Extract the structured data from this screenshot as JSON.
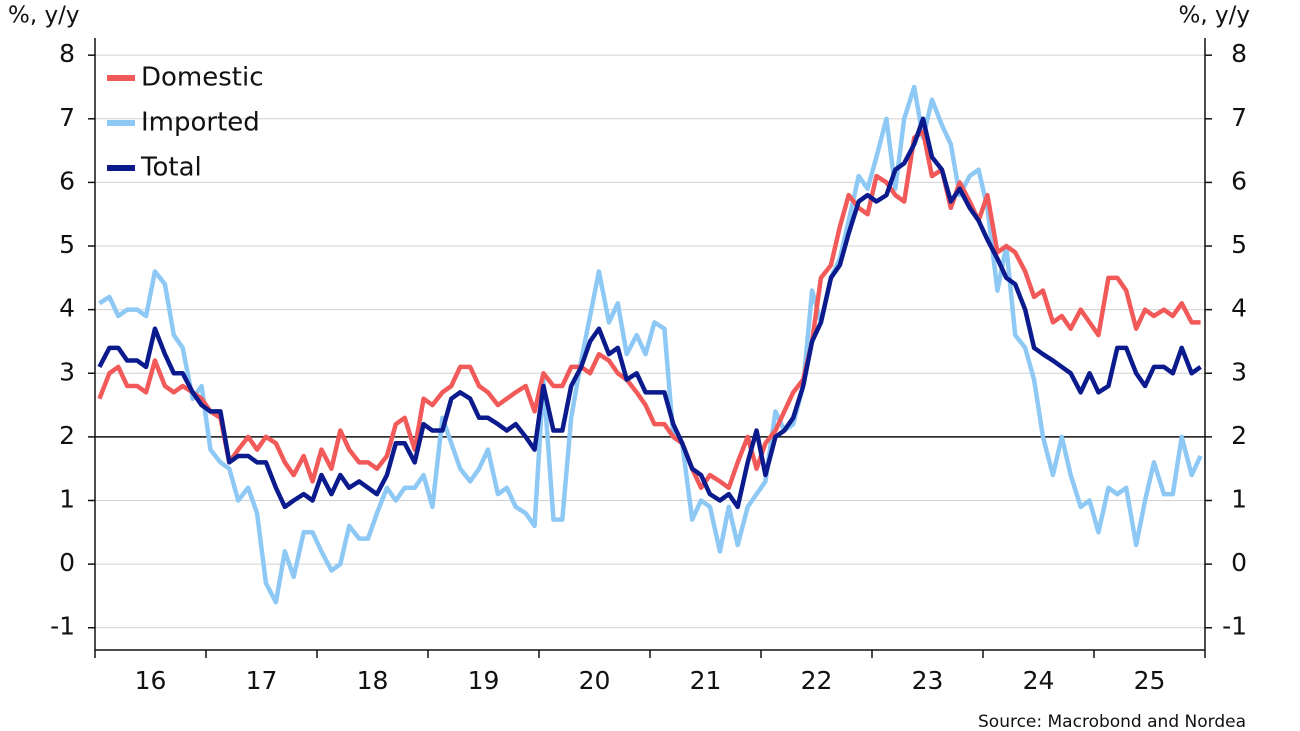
{
  "chart_data": {
    "type": "line",
    "y_unit_label": "%, y/y",
    "source": "Source: Macrobond and Nordea",
    "x": [
      16.04,
      16.13,
      16.21,
      16.29,
      16.38,
      16.46,
      16.54,
      16.63,
      16.71,
      16.79,
      16.88,
      16.96,
      17.04,
      17.13,
      17.21,
      17.29,
      17.38,
      17.46,
      17.54,
      17.63,
      17.71,
      17.79,
      17.88,
      17.96,
      18.04,
      18.13,
      18.21,
      18.29,
      18.38,
      18.46,
      18.54,
      18.63,
      18.71,
      18.79,
      18.88,
      18.96,
      19.04,
      19.13,
      19.21,
      19.29,
      19.38,
      19.46,
      19.54,
      19.63,
      19.71,
      19.79,
      19.88,
      19.96,
      20.04,
      20.13,
      20.21,
      20.29,
      20.38,
      20.46,
      20.54,
      20.63,
      20.71,
      20.79,
      20.88,
      20.96,
      21.04,
      21.13,
      21.21,
      21.29,
      21.38,
      21.46,
      21.54,
      21.63,
      21.71,
      21.79,
      21.88,
      21.96,
      22.04,
      22.13,
      22.21,
      22.29,
      22.38,
      22.46,
      22.54,
      22.63,
      22.71,
      22.79,
      22.88,
      22.96,
      23.04,
      23.13,
      23.21,
      23.29,
      23.38,
      23.46,
      23.54,
      23.63,
      23.71,
      23.79,
      23.88,
      23.96,
      24.04,
      24.13,
      24.21,
      24.29,
      24.38,
      24.46,
      24.54,
      24.63,
      24.71,
      24.79,
      24.88,
      24.96,
      25.04,
      25.13,
      25.21,
      25.29,
      25.38,
      25.46,
      25.54,
      25.63,
      25.71,
      25.79,
      25.88,
      25.96
    ],
    "series": [
      {
        "name": "Domestic",
        "color": "#f25a5a",
        "values": [
          2.6,
          3.0,
          3.1,
          2.8,
          2.8,
          2.7,
          3.2,
          2.8,
          2.7,
          2.8,
          2.7,
          2.6,
          2.4,
          2.3,
          1.6,
          1.8,
          2.0,
          1.8,
          2.0,
          1.9,
          1.6,
          1.4,
          1.7,
          1.3,
          1.8,
          1.5,
          2.1,
          1.8,
          1.6,
          1.6,
          1.5,
          1.7,
          2.2,
          2.3,
          1.8,
          2.6,
          2.5,
          2.7,
          2.8,
          3.1,
          3.1,
          2.8,
          2.7,
          2.5,
          2.6,
          2.7,
          2.8,
          2.4,
          3.0,
          2.8,
          2.8,
          3.1,
          3.1,
          3.0,
          3.3,
          3.2,
          3.0,
          2.9,
          2.7,
          2.5,
          2.2,
          2.2,
          2.0,
          1.9,
          1.5,
          1.2,
          1.4,
          1.3,
          1.2,
          1.6,
          2.0,
          1.5,
          1.9,
          2.1,
          2.4,
          2.7,
          2.9,
          3.5,
          4.5,
          4.7,
          5.3,
          5.8,
          5.6,
          5.5,
          6.1,
          6.0,
          5.8,
          5.7,
          6.7,
          6.8,
          6.1,
          6.2,
          5.6,
          6.0,
          5.7,
          5.4,
          5.8,
          4.9,
          5.0,
          4.9,
          4.6,
          4.2,
          4.3,
          3.8,
          3.9,
          3.7,
          4.0,
          3.8,
          3.6,
          4.5,
          4.5,
          4.3,
          3.7,
          4.0,
          3.9,
          4.0,
          3.9,
          4.1,
          3.8,
          3.8
        ]
      },
      {
        "name": "Imported",
        "color": "#8ec8f5",
        "values": [
          4.1,
          4.2,
          3.9,
          4.0,
          4.0,
          3.9,
          4.6,
          4.4,
          3.6,
          3.4,
          2.6,
          2.8,
          1.8,
          1.6,
          1.5,
          1.0,
          1.2,
          0.8,
          -0.3,
          -0.6,
          0.2,
          -0.2,
          0.5,
          0.5,
          0.2,
          -0.1,
          0.0,
          0.6,
          0.4,
          0.4,
          0.8,
          1.2,
          1.0,
          1.2,
          1.2,
          1.4,
          0.9,
          2.3,
          1.9,
          1.5,
          1.3,
          1.5,
          1.8,
          1.1,
          1.2,
          0.9,
          0.8,
          0.6,
          2.9,
          0.7,
          0.7,
          2.3,
          3.2,
          3.9,
          4.6,
          3.8,
          4.1,
          3.3,
          3.6,
          3.3,
          3.8,
          3.7,
          2.0,
          1.9,
          0.7,
          1.0,
          0.9,
          0.2,
          0.9,
          0.3,
          0.9,
          1.1,
          1.3,
          2.4,
          2.1,
          2.2,
          2.8,
          4.3,
          3.8,
          4.5,
          4.8,
          5.4,
          6.1,
          5.9,
          6.4,
          7.0,
          5.9,
          7.0,
          7.5,
          6.7,
          7.3,
          6.9,
          6.6,
          5.8,
          6.1,
          6.2,
          5.6,
          4.3,
          5.0,
          3.6,
          3.4,
          2.9,
          2.0,
          1.4,
          2.0,
          1.4,
          0.9,
          1.0,
          0.5,
          1.2,
          1.1,
          1.2,
          0.3,
          1.0,
          1.6,
          1.1,
          1.1,
          2.0,
          1.4,
          1.7
        ]
      },
      {
        "name": "Total",
        "color": "#0b1a8c",
        "values": [
          3.1,
          3.4,
          3.4,
          3.2,
          3.2,
          3.1,
          3.7,
          3.3,
          3.0,
          3.0,
          2.7,
          2.5,
          2.4,
          2.4,
          1.6,
          1.7,
          1.7,
          1.6,
          1.6,
          1.2,
          0.9,
          1.0,
          1.1,
          1.0,
          1.4,
          1.1,
          1.4,
          1.2,
          1.3,
          1.2,
          1.1,
          1.4,
          1.9,
          1.9,
          1.6,
          2.2,
          2.1,
          2.1,
          2.6,
          2.7,
          2.6,
          2.3,
          2.3,
          2.2,
          2.1,
          2.2,
          2.0,
          1.8,
          2.8,
          2.1,
          2.1,
          2.8,
          3.1,
          3.5,
          3.7,
          3.3,
          3.4,
          2.9,
          3.0,
          2.7,
          2.7,
          2.7,
          2.2,
          1.9,
          1.5,
          1.4,
          1.1,
          1.0,
          1.1,
          0.9,
          1.6,
          2.1,
          1.4,
          2.0,
          2.1,
          2.3,
          2.8,
          3.5,
          3.8,
          4.5,
          4.7,
          5.2,
          5.7,
          5.8,
          5.7,
          5.8,
          6.2,
          6.3,
          6.6,
          7.0,
          6.4,
          6.2,
          5.7,
          5.9,
          5.6,
          5.4,
          5.1,
          4.8,
          4.5,
          4.4,
          4.0,
          3.4,
          3.3,
          3.2,
          3.1,
          3.0,
          2.7,
          3.0,
          2.7,
          2.8,
          3.4,
          3.4,
          3.0,
          2.8,
          3.1,
          3.1,
          3.0,
          3.4,
          3.0,
          3.1
        ]
      }
    ],
    "xlim": [
      16,
      26
    ],
    "xticks": [
      16,
      17,
      18,
      19,
      20,
      21,
      22,
      23,
      24,
      25,
      26
    ],
    "xtick_labels": [
      {
        "value": 16.5,
        "label": "16"
      },
      {
        "value": 17.5,
        "label": "17"
      },
      {
        "value": 18.5,
        "label": "18"
      },
      {
        "value": 19.5,
        "label": "19"
      },
      {
        "value": 20.5,
        "label": "20"
      },
      {
        "value": 21.5,
        "label": "21"
      },
      {
        "value": 22.5,
        "label": "22"
      },
      {
        "value": 23.5,
        "label": "23"
      },
      {
        "value": 24.5,
        "label": "24"
      },
      {
        "value": 25.5,
        "label": "25"
      }
    ],
    "ylim": [
      -1.35,
      8.27
    ],
    "yticks": [
      -1,
      0,
      1,
      2,
      3,
      4,
      5,
      6,
      7,
      8
    ],
    "y2lim": [
      -1.35,
      8.27
    ],
    "y2ticks": [
      -1,
      0,
      1,
      2,
      3,
      4,
      5,
      6,
      7,
      8
    ],
    "reference_line": 2,
    "grid": true,
    "legend": "upper left"
  }
}
